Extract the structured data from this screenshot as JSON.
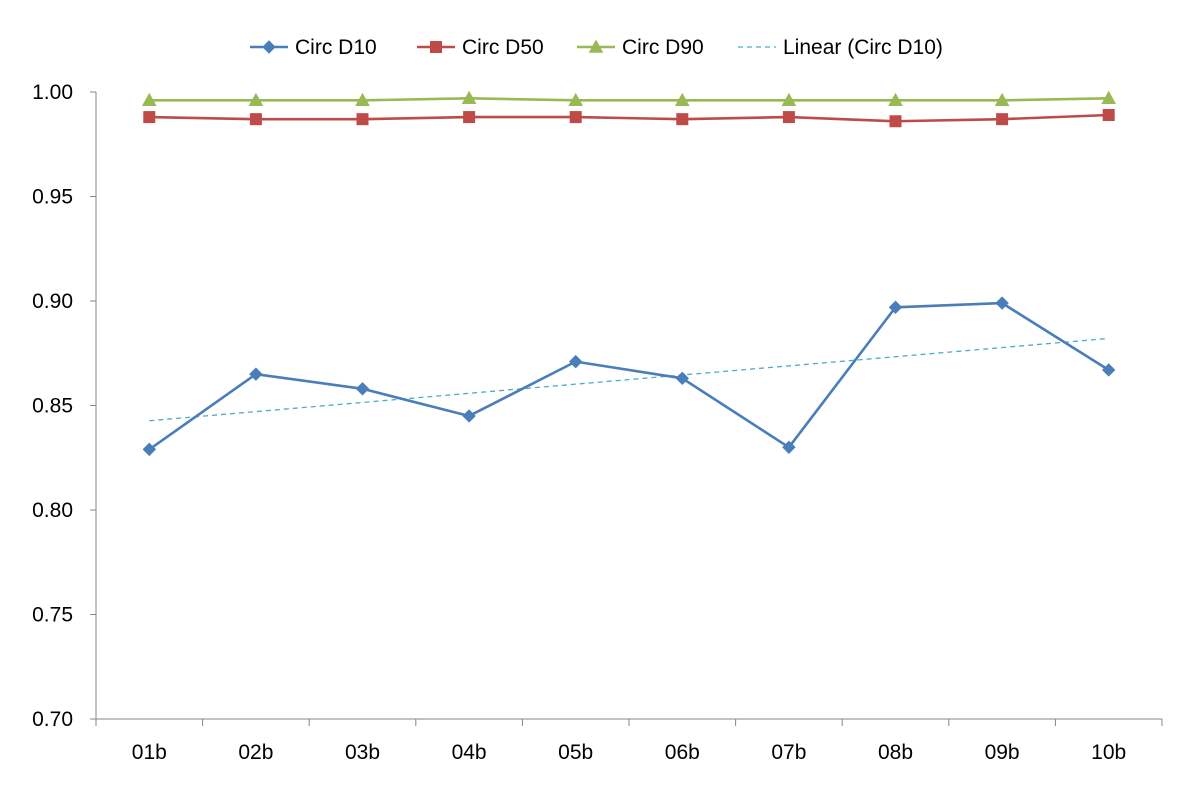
{
  "chart_data": {
    "type": "line",
    "categories": [
      "01b",
      "02b",
      "03b",
      "04b",
      "05b",
      "06b",
      "07b",
      "08b",
      "09b",
      "10b"
    ],
    "series": [
      {
        "name": "Circ D10",
        "marker": "diamond",
        "color": "#4a7ebb",
        "values": [
          0.829,
          0.865,
          0.858,
          0.845,
          0.871,
          0.863,
          0.83,
          0.897,
          0.899,
          0.867
        ]
      },
      {
        "name": "Circ D50",
        "marker": "square",
        "color": "#be4b48",
        "values": [
          0.988,
          0.987,
          0.987,
          0.988,
          0.988,
          0.987,
          0.988,
          0.986,
          0.987,
          0.989
        ]
      },
      {
        "name": "Circ D90",
        "marker": "triangle",
        "color": "#98b954",
        "values": [
          0.996,
          0.996,
          0.996,
          0.997,
          0.996,
          0.996,
          0.996,
          0.996,
          0.996,
          0.997
        ]
      }
    ],
    "trendline": {
      "name": "Linear (Circ D10)",
      "of": "Circ D10",
      "style": "dashed",
      "color": "#4bacc6"
    },
    "ylim": [
      0.7,
      1.0
    ],
    "yticks": [
      "0.70",
      "0.75",
      "0.80",
      "0.85",
      "0.90",
      "0.95",
      "1.00"
    ],
    "grid": false,
    "legend_position": "top"
  }
}
